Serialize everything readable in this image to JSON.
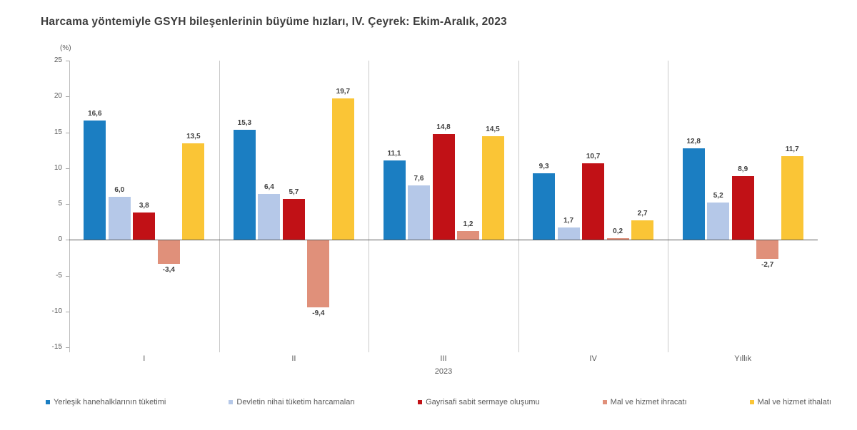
{
  "page": {
    "title": "Harcama yöntemiyle GSYH bileşenlerinin büyüme hızları, IV. Çeyrek: Ekim-Aralık, 2023"
  },
  "chart_data": {
    "type": "bar",
    "title": "Harcama yöntemiyle GSYH bileşenlerinin büyüme hızları, IV. Çeyrek: Ekim-Aralık, 2023",
    "unit_label": "(%)",
    "categories": [
      "I",
      "II",
      "III",
      "IV",
      "Yıllık"
    ],
    "x_axis_note": "2023",
    "y_axis": {
      "min": -15,
      "max": 25,
      "tick_step": 5,
      "ticks": [
        25,
        20,
        15,
        10,
        5,
        0,
        -5,
        -10,
        -15
      ]
    },
    "grid": false,
    "legend_position": "bottom",
    "decimal_separator": ",",
    "series": [
      {
        "name": "Yerleşik hanehalklarının tüketimi",
        "color": "#1b7ec2",
        "values": [
          16.6,
          15.3,
          11.1,
          9.3,
          12.8
        ],
        "labels": [
          "16,6",
          "15,3",
          "11,1",
          "9,3",
          "12,8"
        ]
      },
      {
        "name": "Devletin nihai tüketim harcamaları",
        "color": "#b5c8e8",
        "values": [
          6.0,
          6.4,
          7.6,
          1.7,
          5.2
        ],
        "labels": [
          "6,0",
          "6,4",
          "7,6",
          "1,7",
          "5,2"
        ]
      },
      {
        "name": "Gayrisafi sabit sermaye oluşumu",
        "color": "#c11116",
        "values": [
          3.8,
          5.7,
          14.8,
          10.7,
          8.9
        ],
        "labels": [
          "3,8",
          "5,7",
          "14,8",
          "10,7",
          "8,9"
        ]
      },
      {
        "name": "Mal ve hizmet ihracatı",
        "color": "#e0907a",
        "values": [
          -3.4,
          -9.4,
          1.2,
          0.2,
          -2.7
        ],
        "labels": [
          "-3,4",
          "-9,4",
          "1,2",
          "0,2",
          "-2,7"
        ]
      },
      {
        "name": "Mal ve hizmet ithalatı",
        "color": "#fac536",
        "values": [
          13.5,
          19.7,
          14.5,
          2.7,
          11.7
        ],
        "labels": [
          "13,5",
          "19,7",
          "14,5",
          "2,7",
          "11,7"
        ]
      }
    ]
  }
}
